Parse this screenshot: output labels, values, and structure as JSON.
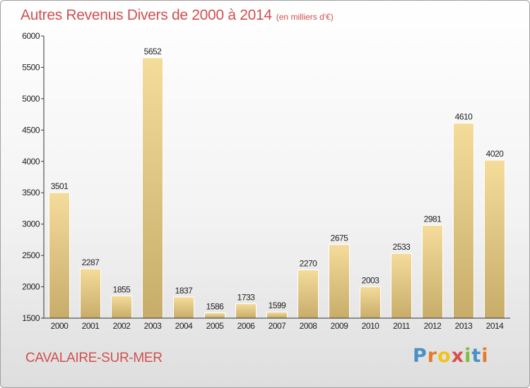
{
  "header": {
    "title": "Autres Revenus Divers de 2000 à 2014",
    "subtitle": "(en milliers d'€)"
  },
  "footer": {
    "location": "CAVALAIRE-SUR-MER",
    "logo_letters": [
      "P",
      "r",
      "o",
      "x",
      "i",
      "t",
      "i"
    ],
    "logo_colors": [
      "#4a90c8",
      "#e47b2a",
      "#f0c419",
      "#d94d4d",
      "#7cbf3a",
      "#4a90c8",
      "#e47b2a"
    ]
  },
  "colors": {
    "accent": "#d0504f",
    "bar_top": "#f5dc9a",
    "bar_bottom": "#c7ac6a",
    "axis": "#333333"
  },
  "chart_data": {
    "type": "bar",
    "title": "Autres Revenus Divers de 2000 à 2014",
    "subtitle": "(en milliers d'€)",
    "categories": [
      "2000",
      "2001",
      "2002",
      "2003",
      "2004",
      "2005",
      "2006",
      "2007",
      "2008",
      "2009",
      "2010",
      "2011",
      "2012",
      "2013",
      "2014"
    ],
    "values": [
      3501,
      2287,
      1855,
      5652,
      1837,
      1586,
      1733,
      1599,
      2270,
      2675,
      2003,
      2533,
      2981,
      4610,
      4020
    ],
    "ylim": [
      1500,
      6000
    ],
    "yticks": [
      1500,
      2000,
      2500,
      3000,
      3500,
      4000,
      4500,
      5000,
      5500,
      6000
    ],
    "data_labels": true,
    "grid": false,
    "legend": "none"
  }
}
